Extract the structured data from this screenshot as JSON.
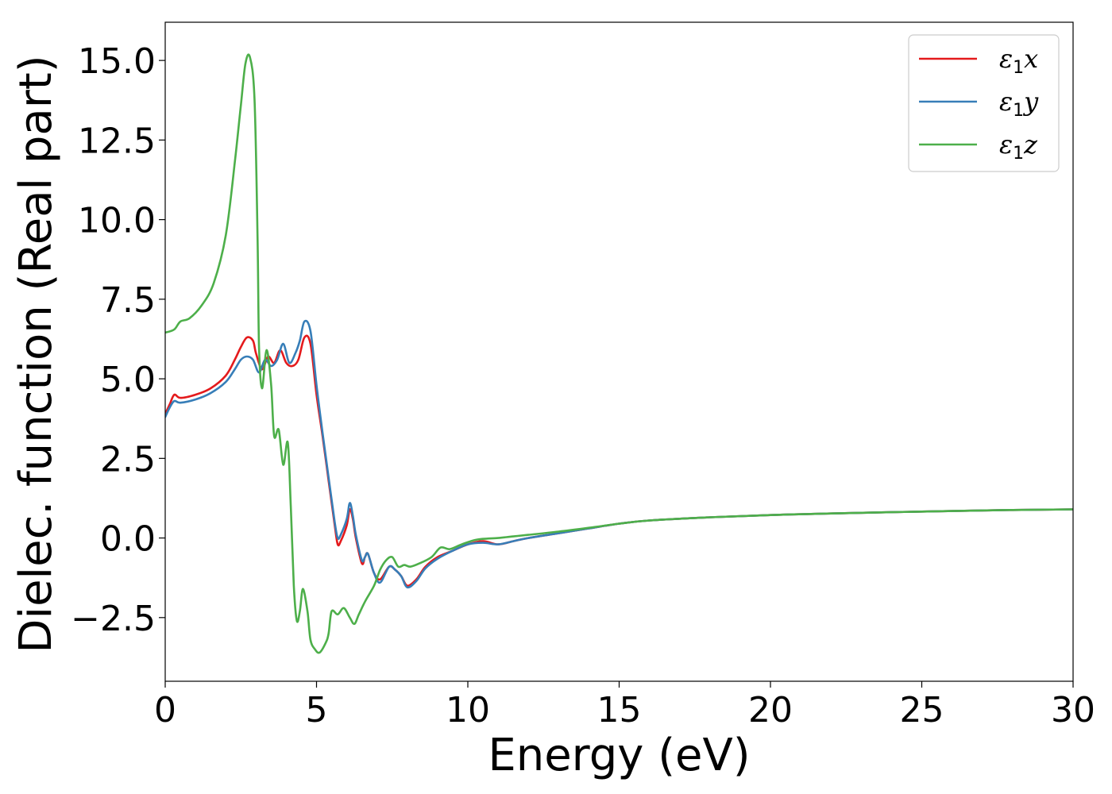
{
  "chart_data": {
    "type": "line",
    "xlabel": "Energy (eV)",
    "ylabel": "Dielec. function (Real part)",
    "xlim": [
      0,
      30
    ],
    "ylim": [
      -4.5,
      16.2
    ],
    "x_ticks": [
      0,
      5,
      10,
      15,
      20,
      25,
      30
    ],
    "x_tick_labels": [
      "0",
      "5",
      "10",
      "15",
      "20",
      "25",
      "30"
    ],
    "y_ticks": [
      -2.5,
      0.0,
      2.5,
      5.0,
      7.5,
      10.0,
      12.5,
      15.0
    ],
    "y_tick_labels": [
      "−2.5",
      "0.0",
      "2.5",
      "5.0",
      "7.5",
      "10.0",
      "12.5",
      "15.0"
    ],
    "grid": false,
    "legend_position": "top-right",
    "series": [
      {
        "name": "ε1x",
        "legend_base": "ε",
        "legend_sub": "1",
        "legend_var": "x",
        "color": "#e41a1c",
        "points": [
          [
            0,
            3.9
          ],
          [
            0.15,
            4.2
          ],
          [
            0.3,
            4.5
          ],
          [
            0.5,
            4.4
          ],
          [
            1.0,
            4.5
          ],
          [
            1.5,
            4.7
          ],
          [
            2.0,
            5.1
          ],
          [
            2.3,
            5.6
          ],
          [
            2.5,
            6.0
          ],
          [
            2.7,
            6.3
          ],
          [
            2.9,
            6.2
          ],
          [
            3.0,
            5.8
          ],
          [
            3.2,
            5.3
          ],
          [
            3.4,
            5.7
          ],
          [
            3.6,
            5.5
          ],
          [
            3.8,
            5.9
          ],
          [
            4.0,
            5.5
          ],
          [
            4.2,
            5.4
          ],
          [
            4.4,
            5.6
          ],
          [
            4.6,
            6.3
          ],
          [
            4.8,
            6.1
          ],
          [
            5.0,
            4.5
          ],
          [
            5.2,
            3.2
          ],
          [
            5.4,
            1.8
          ],
          [
            5.6,
            0.4
          ],
          [
            5.7,
            -0.2
          ],
          [
            5.8,
            -0.1
          ],
          [
            6.0,
            0.4
          ],
          [
            6.1,
            0.9
          ],
          [
            6.2,
            0.6
          ],
          [
            6.3,
            0.0
          ],
          [
            6.5,
            -0.8
          ],
          [
            6.6,
            -0.6
          ],
          [
            6.7,
            -0.5
          ],
          [
            6.9,
            -1.1
          ],
          [
            7.1,
            -1.3
          ],
          [
            7.4,
            -0.9
          ],
          [
            7.6,
            -1.0
          ],
          [
            7.8,
            -1.2
          ],
          [
            8.0,
            -1.5
          ],
          [
            8.3,
            -1.3
          ],
          [
            8.6,
            -0.9
          ],
          [
            9.0,
            -0.6
          ],
          [
            9.5,
            -0.4
          ],
          [
            10.0,
            -0.2
          ],
          [
            10.5,
            -0.1
          ],
          [
            11.0,
            -0.2
          ],
          [
            11.5,
            -0.1
          ],
          [
            12.0,
            0.0
          ],
          [
            13.0,
            0.15
          ],
          [
            14.0,
            0.3
          ],
          [
            15.0,
            0.45
          ],
          [
            16.0,
            0.55
          ],
          [
            18.0,
            0.65
          ],
          [
            20.0,
            0.72
          ],
          [
            22.0,
            0.77
          ],
          [
            25.0,
            0.83
          ],
          [
            28.0,
            0.88
          ],
          [
            30.0,
            0.9
          ]
        ]
      },
      {
        "name": "ε1y",
        "legend_base": "ε",
        "legend_sub": "1",
        "legend_var": "y",
        "color": "#377eb8",
        "points": [
          [
            0,
            3.8
          ],
          [
            0.15,
            4.1
          ],
          [
            0.3,
            4.3
          ],
          [
            0.5,
            4.25
          ],
          [
            1.0,
            4.35
          ],
          [
            1.5,
            4.55
          ],
          [
            2.0,
            4.9
          ],
          [
            2.3,
            5.3
          ],
          [
            2.5,
            5.6
          ],
          [
            2.7,
            5.7
          ],
          [
            2.9,
            5.6
          ],
          [
            3.1,
            5.2
          ],
          [
            3.3,
            5.6
          ],
          [
            3.5,
            5.4
          ],
          [
            3.7,
            5.6
          ],
          [
            3.9,
            6.1
          ],
          [
            4.1,
            5.5
          ],
          [
            4.3,
            5.8
          ],
          [
            4.45,
            6.2
          ],
          [
            4.6,
            6.8
          ],
          [
            4.8,
            6.5
          ],
          [
            5.0,
            4.8
          ],
          [
            5.2,
            3.3
          ],
          [
            5.4,
            1.9
          ],
          [
            5.6,
            0.5
          ],
          [
            5.7,
            0.0
          ],
          [
            5.8,
            0.1
          ],
          [
            6.0,
            0.6
          ],
          [
            6.1,
            1.1
          ],
          [
            6.2,
            0.7
          ],
          [
            6.3,
            0.1
          ],
          [
            6.5,
            -0.7
          ],
          [
            6.6,
            -0.6
          ],
          [
            6.7,
            -0.5
          ],
          [
            6.9,
            -1.1
          ],
          [
            7.1,
            -1.4
          ],
          [
            7.4,
            -0.9
          ],
          [
            7.6,
            -1.0
          ],
          [
            7.8,
            -1.2
          ],
          [
            8.0,
            -1.55
          ],
          [
            8.3,
            -1.35
          ],
          [
            8.6,
            -0.95
          ],
          [
            9.0,
            -0.65
          ],
          [
            9.5,
            -0.4
          ],
          [
            10.0,
            -0.2
          ],
          [
            10.5,
            -0.15
          ],
          [
            11.0,
            -0.2
          ],
          [
            11.5,
            -0.1
          ],
          [
            12.0,
            0.0
          ],
          [
            13.0,
            0.15
          ],
          [
            14.0,
            0.3
          ],
          [
            15.0,
            0.45
          ],
          [
            16.0,
            0.55
          ],
          [
            18.0,
            0.65
          ],
          [
            20.0,
            0.72
          ],
          [
            22.0,
            0.77
          ],
          [
            25.0,
            0.83
          ],
          [
            28.0,
            0.88
          ],
          [
            30.0,
            0.9
          ]
        ]
      },
      {
        "name": "ε1z",
        "legend_base": "ε",
        "legend_sub": "1",
        "legend_var": "z",
        "color": "#4daf4a",
        "points": [
          [
            0,
            6.45
          ],
          [
            0.3,
            6.55
          ],
          [
            0.5,
            6.8
          ],
          [
            0.8,
            6.9
          ],
          [
            1.2,
            7.3
          ],
          [
            1.6,
            8.0
          ],
          [
            2.0,
            9.5
          ],
          [
            2.3,
            11.8
          ],
          [
            2.5,
            13.6
          ],
          [
            2.65,
            14.9
          ],
          [
            2.8,
            15.1
          ],
          [
            2.95,
            13.8
          ],
          [
            3.05,
            9.5
          ],
          [
            3.1,
            6.0
          ],
          [
            3.2,
            4.7
          ],
          [
            3.35,
            5.9
          ],
          [
            3.5,
            4.8
          ],
          [
            3.6,
            3.2
          ],
          [
            3.75,
            3.4
          ],
          [
            3.9,
            2.3
          ],
          [
            4.05,
            3.0
          ],
          [
            4.15,
            1.0
          ],
          [
            4.25,
            -1.5
          ],
          [
            4.35,
            -2.6
          ],
          [
            4.45,
            -2.3
          ],
          [
            4.55,
            -1.6
          ],
          [
            4.7,
            -2.3
          ],
          [
            4.8,
            -3.2
          ],
          [
            4.95,
            -3.5
          ],
          [
            5.1,
            -3.6
          ],
          [
            5.3,
            -3.3
          ],
          [
            5.4,
            -3.0
          ],
          [
            5.5,
            -2.3
          ],
          [
            5.7,
            -2.4
          ],
          [
            5.9,
            -2.2
          ],
          [
            6.1,
            -2.5
          ],
          [
            6.25,
            -2.7
          ],
          [
            6.4,
            -2.4
          ],
          [
            6.6,
            -2.0
          ],
          [
            6.9,
            -1.5
          ],
          [
            7.1,
            -1.0
          ],
          [
            7.3,
            -0.7
          ],
          [
            7.5,
            -0.6
          ],
          [
            7.7,
            -0.9
          ],
          [
            7.9,
            -0.85
          ],
          [
            8.1,
            -0.9
          ],
          [
            8.4,
            -0.8
          ],
          [
            8.8,
            -0.6
          ],
          [
            9.1,
            -0.3
          ],
          [
            9.4,
            -0.35
          ],
          [
            9.8,
            -0.2
          ],
          [
            10.3,
            -0.05
          ],
          [
            11.0,
            0.0
          ],
          [
            11.5,
            0.05
          ],
          [
            12.0,
            0.1
          ],
          [
            13.0,
            0.2
          ],
          [
            14.0,
            0.32
          ],
          [
            15.0,
            0.45
          ],
          [
            16.0,
            0.55
          ],
          [
            18.0,
            0.65
          ],
          [
            20.0,
            0.72
          ],
          [
            22.0,
            0.77
          ],
          [
            25.0,
            0.83
          ],
          [
            28.0,
            0.88
          ],
          [
            30.0,
            0.9
          ]
        ]
      }
    ]
  }
}
